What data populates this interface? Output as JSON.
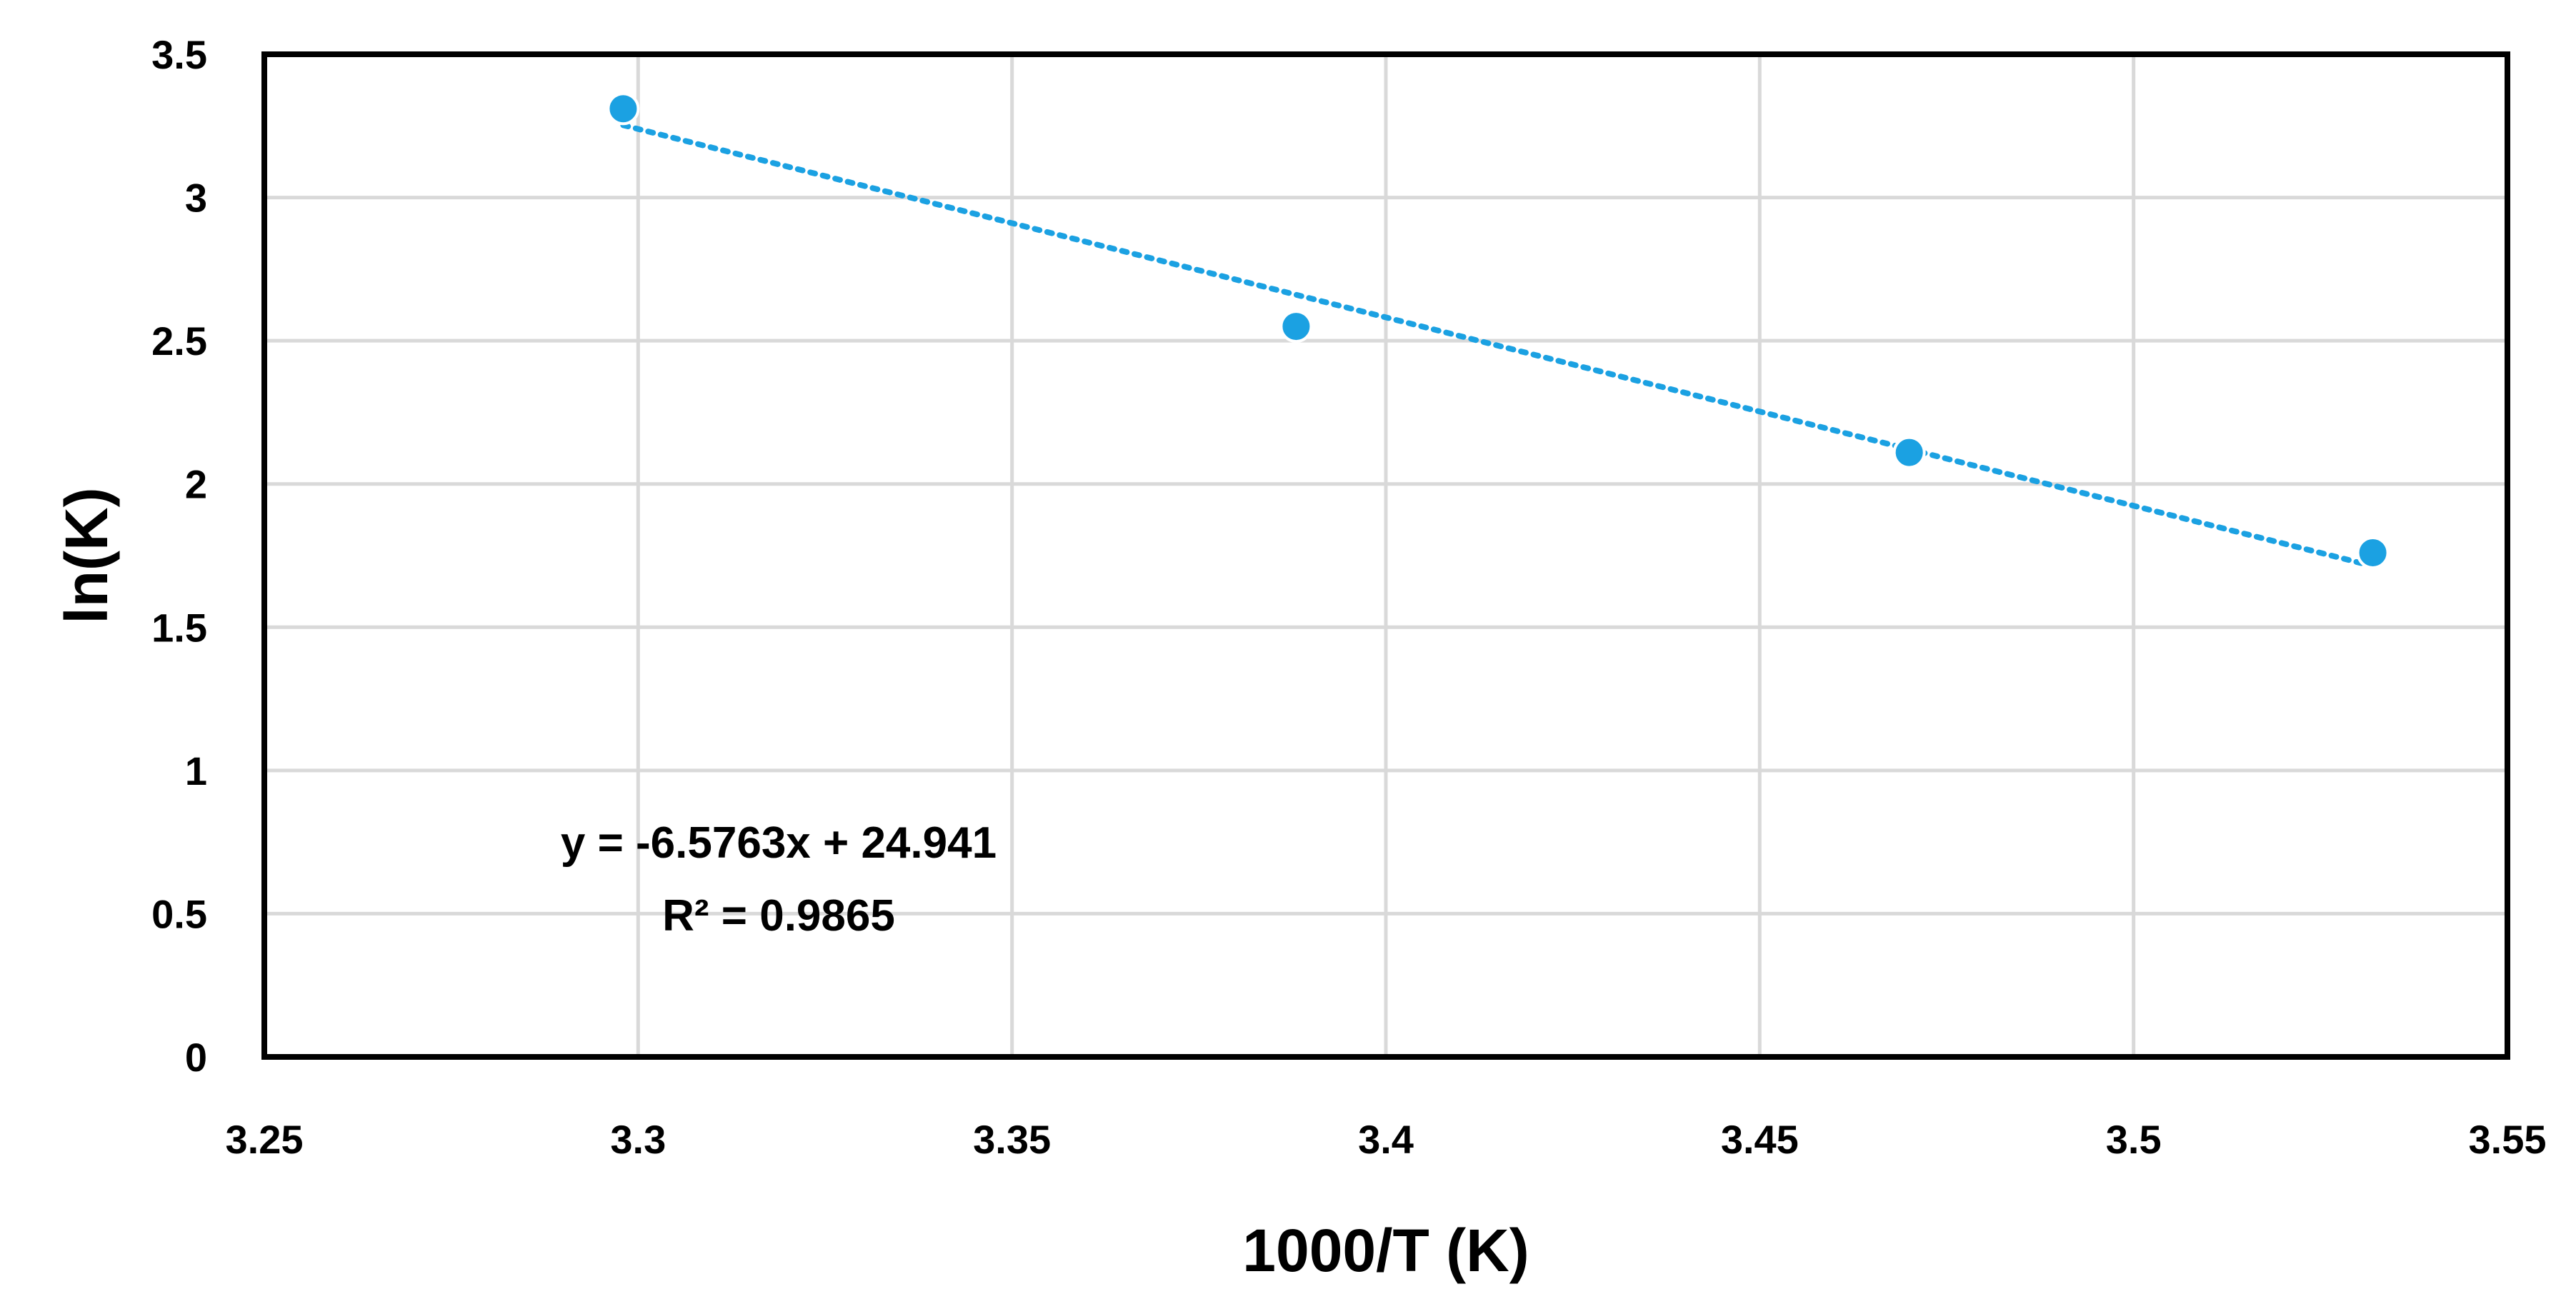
{
  "chart_data": {
    "type": "scatter",
    "title": "",
    "xlabel": "1000/T (K)",
    "ylabel": "ln(K)",
    "xlim": [
      3.25,
      3.55
    ],
    "ylim": [
      0,
      3.5
    ],
    "x_ticks": [
      3.25,
      3.3,
      3.35,
      3.4,
      3.45,
      3.5,
      3.55
    ],
    "x_tick_labels": [
      "3.25",
      "3.3",
      "3.35",
      "3.4",
      "3.45",
      "3.5",
      "3.55"
    ],
    "y_ticks": [
      0,
      0.5,
      1,
      1.5,
      2,
      2.5,
      3,
      3.5
    ],
    "y_tick_labels": [
      "0",
      "0.5",
      "1",
      "1.5",
      "2",
      "2.5",
      "3",
      "3.5"
    ],
    "grid": true,
    "series": [
      {
        "name": "ln(K)",
        "x": [
          3.298,
          3.388,
          3.47,
          3.532
        ],
        "y": [
          3.31,
          2.55,
          2.11,
          1.76
        ],
        "color": "#1ba1e2"
      }
    ],
    "trendline": {
      "type": "linear",
      "slope": -6.5763,
      "intercept": 24.941,
      "color": "#1ba1e2",
      "style": "dotted"
    },
    "annotations": {
      "equation": "y = -6.5763x + 24.941",
      "r_squared": "R² = 0.9865"
    }
  }
}
